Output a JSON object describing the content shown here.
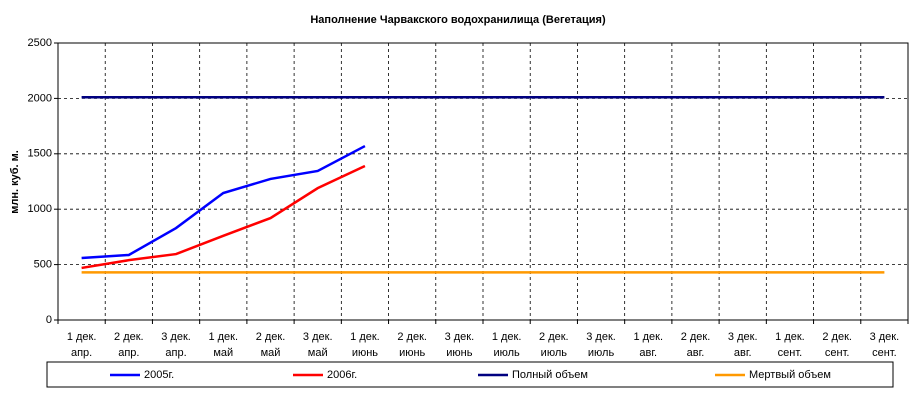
{
  "chart_data": {
    "type": "line",
    "title": "Наполнение Чарвакского водохранилища  (Вегетация)",
    "y_label": "млн. куб. м.",
    "categories": [
      [
        "1 дек.",
        "апр."
      ],
      [
        "2 дек.",
        "апр."
      ],
      [
        "3 дек.",
        "апр."
      ],
      [
        "1 дек.",
        "май"
      ],
      [
        "2 дек.",
        "май"
      ],
      [
        "3 дек.",
        "май"
      ],
      [
        "1 дек.",
        "июнь"
      ],
      [
        "2 дек.",
        "июнь"
      ],
      [
        "3 дек.",
        "июнь"
      ],
      [
        "1 дек.",
        "июль"
      ],
      [
        "2 дек.",
        "июль"
      ],
      [
        "3 дек.",
        "июль"
      ],
      [
        "1 дек.",
        "авг."
      ],
      [
        "2 дек.",
        "авг."
      ],
      [
        "3 дек.",
        "авг."
      ],
      [
        "1 дек.",
        "сент."
      ],
      [
        "2 дек.",
        "сент."
      ],
      [
        "3 дек.",
        "сент."
      ]
    ],
    "series": [
      {
        "name": "2005г.",
        "color": "#0000ff",
        "values": [
          560,
          587,
          830,
          1146,
          1273,
          1345,
          1570,
          null,
          null,
          null,
          null,
          null,
          null,
          null,
          null,
          null,
          null,
          null
        ]
      },
      {
        "name": "2006г.",
        "color": "#ff0000",
        "values": [
          470,
          540,
          595,
          760,
          920,
          1190,
          1390,
          null,
          null,
          null,
          null,
          null,
          null,
          null,
          null,
          null,
          null,
          null
        ]
      },
      {
        "name": "Полный объем",
        "color": "#000080",
        "values": [
          2010,
          2010,
          2010,
          2010,
          2010,
          2010,
          2010,
          2010,
          2010,
          2010,
          2010,
          2010,
          2010,
          2010,
          2010,
          2010,
          2010,
          2010
        ]
      },
      {
        "name": "Мертвый объем",
        "color": "#ff9900",
        "values": [
          430,
          430,
          430,
          430,
          430,
          430,
          430,
          430,
          430,
          430,
          430,
          430,
          430,
          430,
          430,
          430,
          430,
          430
        ]
      }
    ],
    "ylim": [
      0,
      2500
    ],
    "yticks": [
      0,
      500,
      1000,
      1500,
      2000,
      2500
    ],
    "grid": true,
    "legend": "bottom"
  }
}
